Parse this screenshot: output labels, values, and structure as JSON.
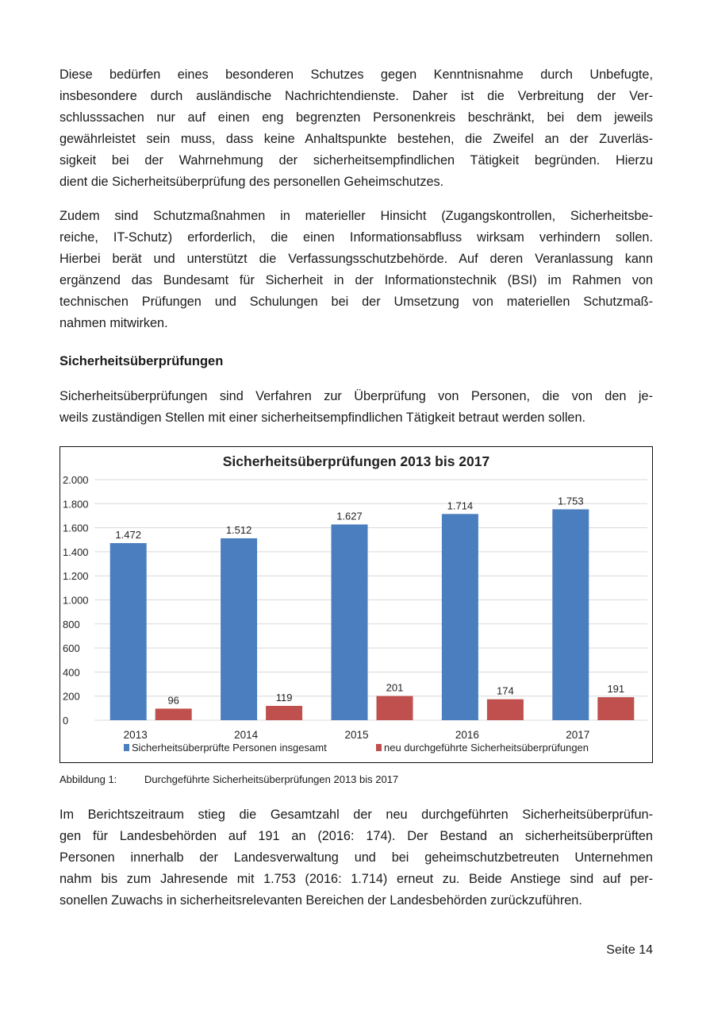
{
  "paragraphs": [
    {
      "lines": [
        "Diese bedürfen eines besonderen Schutzes gegen Kenntnisnahme durch Unbefugte,",
        "insbesondere durch ausländische Nachrichtendienste. Daher ist die Verbreitung der Ver-",
        "schlusssachen nur auf einen eng begrenzten Personenkreis beschränkt, bei dem jeweils",
        "gewährleistet sein muss, dass keine Anhaltspunkte bestehen, die Zweifel an der Zuverläs-",
        "sigkeit bei der Wahrnehmung der sicherheitsempfindlichen Tätigkeit begründen. Hierzu",
        "dient die Sicherheitsüberprüfung des personellen Geheimschutzes."
      ]
    },
    {
      "lines": [
        "Zudem sind Schutzmaßnahmen in materieller Hinsicht (Zugangskontrollen, Sicherheitsbe-",
        "reiche, IT-Schutz) erforderlich, die einen Informationsabfluss wirksam verhindern sollen.",
        "Hierbei berät und unterstützt die Verfassungsschutzbehörde. Auf deren Veranlassung kann",
        "ergänzend das Bundesamt für Sicherheit in der Informationstechnik (BSI) im Rahmen von",
        "technischen Prüfungen und Schulungen bei der Umsetzung von materiellen Schutzmaß-",
        "nahmen mitwirken."
      ]
    },
    {
      "lines": [
        "Sicherheitsüberprüfungen sind Verfahren zur Überprüfung von Personen, die von den je-",
        "weils zuständigen Stellen mit einer sicherheitsempfindlichen Tätigkeit betraut werden sollen."
      ]
    },
    {
      "lines": [
        "Im Berichtszeitraum stieg die Gesamtzahl der neu durchgeführten Sicherheitsüberprüfun-",
        "gen für Landesbehörden auf 191 an (2016: 174). Der Bestand an sicherheitsüberprüften",
        "Personen innerhalb der Landesverwaltung und bei geheimschutzbetreuten Unternehmen",
        "nahm bis zum Jahresende mit 1.753 (2016: 1.714) erneut zu. Beide Anstiege sind auf per-",
        "sonellen Zuwachs in sicherheitsrelevanten Bereichen der Landesbehörden zurückzuführen."
      ]
    }
  ],
  "heading": "Sicherheitsüberprüfungen",
  "caption": {
    "number": "Abbildung 1:",
    "text": "Durchgeführte Sicherheitsüberprüfungen 2013 bis 2017"
  },
  "page_number": "Seite 14",
  "chart_data": {
    "type": "bar",
    "title": "Sicherheitsüberprüfungen 2013 bis 2017",
    "categories": [
      "2013",
      "2014",
      "2015",
      "2016",
      "2017"
    ],
    "series": [
      {
        "name": "Sicherheitsüberprüfte Personen insgesamt",
        "values": [
          1472,
          1512,
          1627,
          1714,
          1753
        ],
        "labels": [
          "1.472",
          "1.512",
          "1.627",
          "1.714",
          "1.753"
        ],
        "color": "#4a7ebf"
      },
      {
        "name": "neu durchgeführte Sicherheitsüberprüfungen",
        "values": [
          96,
          119,
          201,
          174,
          191
        ],
        "labels": [
          "96",
          "119",
          "201",
          "174",
          "191"
        ],
        "color": "#c0504d"
      }
    ],
    "ylim": [
      0,
      2000
    ],
    "yticks": [
      0,
      200,
      400,
      600,
      800,
      1000,
      1200,
      1400,
      1600,
      1800,
      2000
    ],
    "ytick_labels": [
      "0",
      "200",
      "400",
      "600",
      "800",
      "1.000",
      "1.200",
      "1.400",
      "1.600",
      "1.800",
      "2.000"
    ],
    "grid": true,
    "legend_position": "bottom"
  }
}
